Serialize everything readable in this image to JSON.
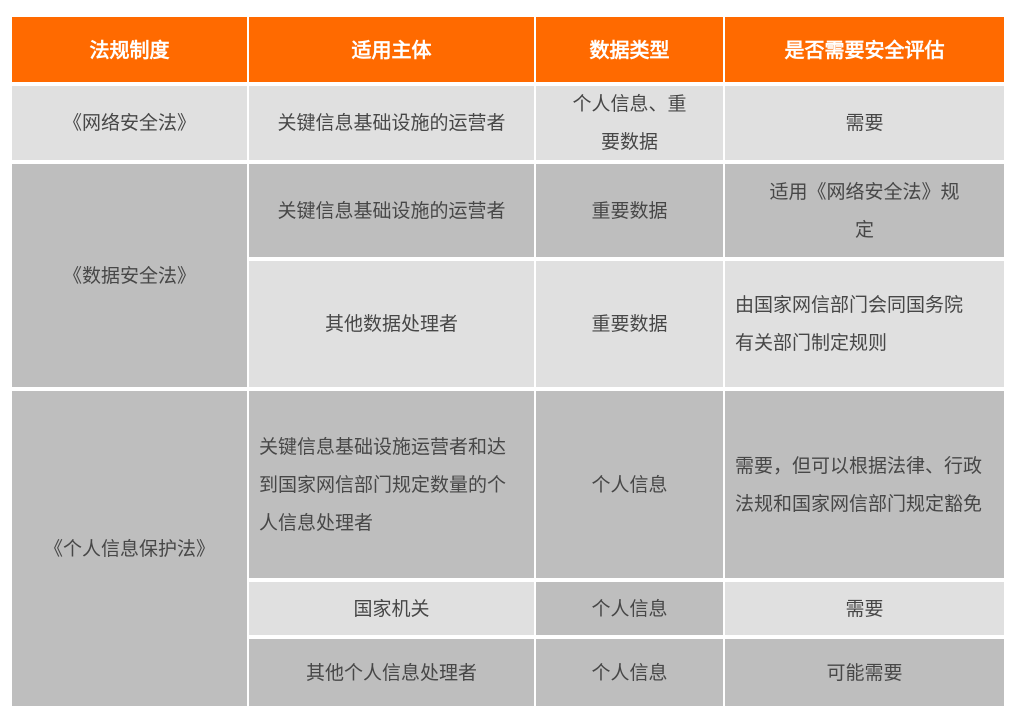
{
  "header": [
    "法规制度",
    "适用主体",
    "数据类型",
    "是否需要安全评估"
  ],
  "rows": [
    {
      "law": "《网络安全法》",
      "subject": "关键信息基础设施的运营者",
      "data_type": "个人信息、重要数据",
      "assessment": "需要"
    },
    {
      "law": "《数据安全法》",
      "subject": "关键信息基础设施的运营者",
      "data_type": "重要数据",
      "assessment": "适用《网络安全法》规定"
    },
    {
      "subject": "其他数据处理者",
      "data_type": "重要数据",
      "assessment": "由国家网信部门会同国务院有关部门制定规则"
    },
    {
      "law": "《个人信息保护法》",
      "subject": "关键信息基础设施运营者和达到国家网信部门规定数量的个人信息处理者",
      "data_type": "个人信息",
      "assessment": "需要，但可以根据法律、行政法规和国家网信部门规定豁免"
    },
    {
      "subject": "国家机关",
      "data_type": "个人信息",
      "assessment": "需要"
    },
    {
      "subject": "其他个人信息处理者",
      "data_type": "个人信息",
      "assessment": "可能需要"
    }
  ],
  "colors": {
    "header": "#ff6a00",
    "light_cell": "#e0e0e0",
    "dark_cell": "#bebebe",
    "text": "#474747"
  }
}
